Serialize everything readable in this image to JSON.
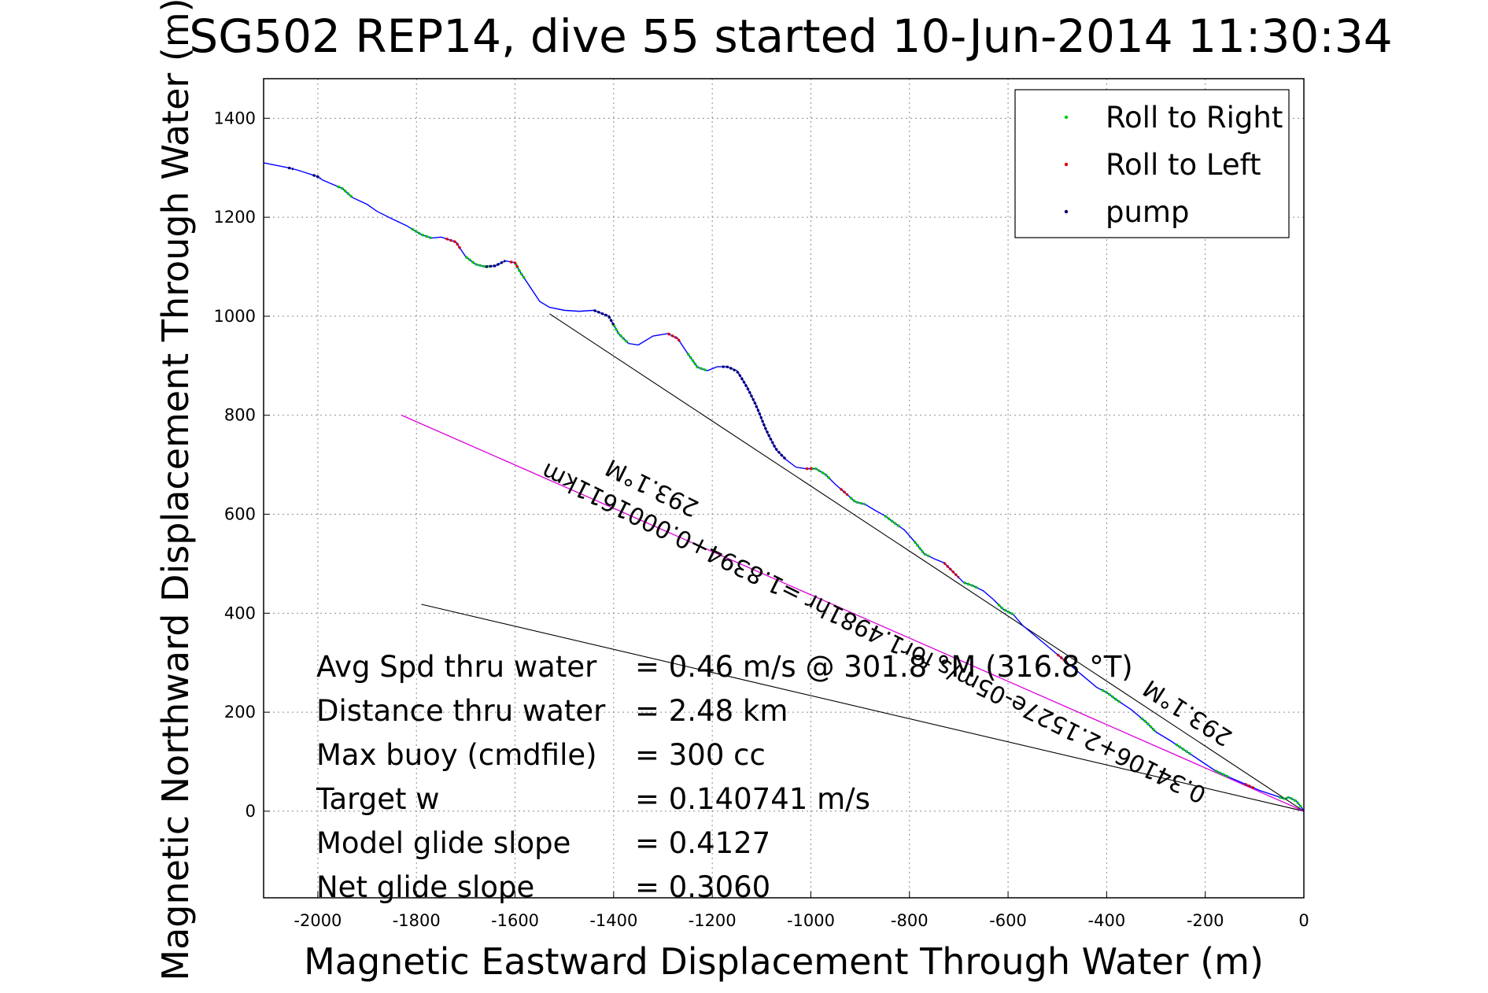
{
  "chart_data": {
    "type": "line",
    "title": "SG502 REP14, dive 55 started 10-Jun-2014 11:30:34",
    "xlabel": "Magnetic Eastward Displacement Through Water (m)",
    "ylabel": "Magnetic Northward Displacement Through Water (m)",
    "xlim": [
      -2110,
      0
    ],
    "ylim": [
      -175,
      1480
    ],
    "xticks": [
      -2000,
      -1800,
      -1600,
      -1400,
      -1200,
      -1000,
      -800,
      -600,
      -400,
      -200,
      0
    ],
    "yticks": [
      0,
      200,
      400,
      600,
      800,
      1000,
      1200,
      1400
    ],
    "grid": true,
    "legend_position": "top-right",
    "legend": [
      {
        "label": "Roll to Right",
        "color": "#00cc00"
      },
      {
        "label": "Roll to Left",
        "color": "#dd0000"
      },
      {
        "label": "pump",
        "color": "#000066"
      }
    ],
    "track": {
      "name": "",
      "color": "#0000ff",
      "x": [
        -2110,
        -2060,
        -2040,
        -2000,
        -1990,
        -1950,
        -1930,
        -1900,
        -1880,
        -1850,
        -1820,
        -1790,
        -1770,
        -1750,
        -1720,
        -1700,
        -1680,
        -1660,
        -1640,
        -1620,
        -1600,
        -1590,
        -1570,
        -1550,
        -1530,
        -1500,
        -1470,
        -1440,
        -1410,
        -1390,
        -1370,
        -1350,
        -1320,
        -1290,
        -1270,
        -1250,
        -1230,
        -1210,
        -1190,
        -1170,
        -1150,
        -1130,
        -1110,
        -1090,
        -1070,
        -1050,
        -1030,
        -1010,
        -990,
        -970,
        -950,
        -930,
        -910,
        -890,
        -870,
        -850,
        -830,
        -810,
        -790,
        -770,
        -750,
        -730,
        -710,
        -690,
        -670,
        -650,
        -630,
        -610,
        -590,
        -570,
        -540,
        -510,
        -480,
        -450,
        -420,
        -400,
        -380,
        -350,
        -320,
        -300,
        -270,
        -240,
        -210,
        -180,
        -150,
        -120,
        -90,
        -60,
        -40,
        -30,
        -15,
        -5,
        0
      ],
      "y": [
        1310,
        1300,
        1295,
        1282,
        1275,
        1258,
        1240,
        1226,
        1212,
        1197,
        1183,
        1165,
        1158,
        1160,
        1150,
        1120,
        1105,
        1100,
        1102,
        1112,
        1108,
        1090,
        1060,
        1030,
        1018,
        1012,
        1010,
        1012,
        1000,
        965,
        945,
        942,
        960,
        965,
        955,
        925,
        897,
        890,
        898,
        898,
        890,
        858,
        818,
        768,
        730,
        710,
        695,
        692,
        692,
        680,
        660,
        643,
        625,
        620,
        608,
        597,
        582,
        568,
        545,
        520,
        510,
        502,
        482,
        462,
        455,
        445,
        428,
        408,
        398,
        375,
        350,
        325,
        300,
        275,
        250,
        240,
        225,
        205,
        180,
        160,
        142,
        122,
        102,
        82,
        68,
        55,
        42,
        32,
        25,
        28,
        20,
        8,
        0
      ]
    },
    "roll_right_segments": [
      [
        -1960,
        -1930
      ],
      [
        -1810,
        -1770
      ],
      [
        -1700,
        -1650
      ],
      [
        -1600,
        -1580
      ],
      [
        -1400,
        -1370
      ],
      [
        -1250,
        -1210
      ],
      [
        -1000,
        -960
      ],
      [
        -920,
        -890
      ],
      [
        -850,
        -820
      ],
      [
        -790,
        -760
      ],
      [
        -690,
        -660
      ],
      [
        -620,
        -590
      ],
      [
        -410,
        -370
      ],
      [
        -330,
        -300
      ],
      [
        -260,
        -230
      ],
      [
        -180,
        -150
      ],
      [
        -50,
        -5
      ]
    ],
    "roll_left_segments": [
      [
        -1740,
        -1710
      ],
      [
        -1610,
        -1595
      ],
      [
        -1290,
        -1265
      ],
      [
        -1010,
        -995
      ],
      [
        -940,
        -925
      ],
      [
        -730,
        -700
      ],
      [
        -500,
        -480
      ],
      [
        -120,
        -100
      ]
    ],
    "pump_segments": [
      [
        -2060,
        -2050
      ],
      [
        -2010,
        -1995
      ],
      [
        -1660,
        -1620
      ],
      [
        -1440,
        -1400
      ],
      [
        -1180,
        -1050
      ]
    ],
    "heading_lines": [
      {
        "from": [
          -1530,
          1005
        ],
        "to": [
          0,
          0
        ]
      },
      {
        "from": [
          -1790,
          418
        ],
        "to": [
          0,
          0
        ]
      }
    ],
    "fit_line": {
      "from": [
        -1830,
        800
      ],
      "to": [
        0,
        0
      ],
      "color": "#dd00dd"
    },
    "rotated_labels": [
      "0.34106+2.1527e-05m/s for1.4981hr =1.8394+0.0001611km",
      "293.1°M",
      "293.1°M"
    ],
    "stats": [
      {
        "label": "Avg Spd thru water",
        "value": "=  0.46 m/s @ 301.8 °M (316.8 °T)"
      },
      {
        "label": "Distance thru water",
        "value": "=  2.48 km"
      },
      {
        "label": "Max buoy (cmdfile)",
        "value": "= 300 cc"
      },
      {
        "label": "Target w",
        "value": "= 0.140741 m/s"
      },
      {
        "label": "Model glide slope",
        "value": "= 0.4127"
      },
      {
        "label": "Net glide slope",
        "value": "= 0.3060"
      }
    ]
  }
}
